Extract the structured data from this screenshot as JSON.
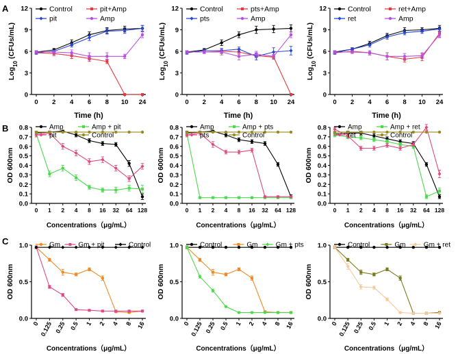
{
  "panel_labels": [
    "A",
    "B",
    "C"
  ],
  "chart_data": [
    {
      "id": "A1",
      "row": "A",
      "type": "line",
      "ylabel": "Log10 (CFUs/mL)",
      "xlabel": "Time (h)",
      "ylabel_parts": [
        "Log",
        "10",
        " (CFUs/mL)"
      ],
      "categories": [
        "0",
        "2",
        "4",
        "6",
        "8",
        "10",
        "24"
      ],
      "ylim": [
        0,
        12
      ],
      "yticks": [
        0,
        3,
        6,
        9,
        12
      ],
      "legend": [
        "Control",
        "pit+Amp",
        "pit",
        "Amp"
      ],
      "series": [
        {
          "name": "Control",
          "color": "#000000",
          "values": [
            5.9,
            6.2,
            7.2,
            8.3,
            8.9,
            9.1,
            9.2
          ],
          "err": [
            0.2,
            0.2,
            0.4,
            0.4,
            0.4,
            0.4,
            0.4
          ]
        },
        {
          "name": "pit+Amp",
          "color": "#e8383d",
          "values": [
            5.8,
            5.7,
            5.4,
            5.0,
            4.6,
            0,
            0
          ],
          "err": [
            0.2,
            0.3,
            0.4,
            0.4,
            0.3,
            0,
            0
          ]
        },
        {
          "name": "pit",
          "color": "#2446d6",
          "values": [
            5.8,
            6.0,
            6.9,
            7.9,
            8.8,
            8.9,
            9.2
          ],
          "err": [
            0.2,
            0.2,
            0.3,
            0.4,
            0.4,
            0.4,
            0.4
          ]
        },
        {
          "name": "Amp",
          "color": "#b84fe0",
          "values": [
            5.9,
            5.9,
            5.8,
            5.3,
            5.3,
            5.3,
            8.3
          ],
          "err": [
            0.2,
            0.2,
            0.4,
            0.5,
            0.5,
            0.3,
            0.4
          ]
        }
      ]
    },
    {
      "id": "A2",
      "row": "A",
      "type": "line",
      "ylabel": "Log10 (CFUs/mL)",
      "xlabel": "Time (h)",
      "ylabel_parts": [
        "Log",
        "10",
        " (CFUs/mL)"
      ],
      "categories": [
        "0",
        "2",
        "4",
        "6",
        "8",
        "10",
        "24"
      ],
      "ylim": [
        0,
        12
      ],
      "yticks": [
        0,
        3,
        6,
        9,
        12
      ],
      "legend": [
        "Control",
        "pts+Amp",
        "pts",
        "Amp"
      ],
      "series": [
        {
          "name": "Control",
          "color": "#000000",
          "values": [
            5.9,
            6.2,
            7.2,
            8.3,
            9.0,
            9.1,
            9.2
          ],
          "err": [
            0.2,
            0.2,
            0.4,
            0.4,
            0.5,
            0.5,
            0.5
          ]
        },
        {
          "name": "pts+Amp",
          "color": "#e8383d",
          "values": [
            5.9,
            5.9,
            6.0,
            5.9,
            5.4,
            5.2,
            0
          ],
          "err": [
            0.2,
            0.2,
            0.3,
            0.3,
            0.3,
            0.3,
            0
          ]
        },
        {
          "name": "pts",
          "color": "#2446d6",
          "values": [
            5.8,
            6.1,
            6.1,
            6.3,
            5.3,
            5.9,
            6.1
          ],
          "err": [
            0.2,
            0.2,
            0.3,
            0.3,
            0.5,
            0.6,
            0.6
          ]
        },
        {
          "name": "Amp",
          "color": "#b84fe0",
          "values": [
            5.9,
            5.9,
            5.9,
            5.3,
            5.6,
            5.3,
            8.3
          ],
          "err": [
            0.2,
            0.2,
            0.4,
            0.5,
            0.4,
            0.3,
            0.4
          ]
        }
      ]
    },
    {
      "id": "A3",
      "row": "A",
      "type": "line",
      "ylabel": "Log10 (CFUs/mL)",
      "xlabel": "Time (h)",
      "ylabel_parts": [
        "Log",
        "10",
        " (CFUs/mL)"
      ],
      "categories": [
        "0",
        "2",
        "4",
        "6",
        "8",
        "10",
        "24"
      ],
      "ylim": [
        0,
        12
      ],
      "yticks": [
        0,
        3,
        6,
        9,
        12
      ],
      "legend": [
        "Control",
        "ret+Amp",
        "ret",
        "Amp"
      ],
      "series": [
        {
          "name": "Control",
          "color": "#000000",
          "values": [
            5.9,
            6.3,
            7.1,
            8.2,
            8.9,
            9.0,
            9.2
          ],
          "err": [
            0.2,
            0.2,
            0.3,
            0.3,
            0.4,
            0.3,
            0.4
          ]
        },
        {
          "name": "ret+Amp",
          "color": "#e8383d",
          "values": [
            5.8,
            6.0,
            5.8,
            5.3,
            4.9,
            5.2,
            8.5
          ],
          "err": [
            0.2,
            0.2,
            0.3,
            0.5,
            0.4,
            0.5,
            0.5
          ]
        },
        {
          "name": "ret",
          "color": "#2446d6",
          "values": [
            5.8,
            6.3,
            6.9,
            8.0,
            8.6,
            8.8,
            9.1
          ],
          "err": [
            0.2,
            0.2,
            0.3,
            0.3,
            0.3,
            0.3,
            0.3
          ]
        },
        {
          "name": "Amp",
          "color": "#b84fe0",
          "values": [
            5.9,
            5.9,
            5.8,
            5.3,
            5.3,
            5.4,
            8.3
          ],
          "err": [
            0.2,
            0.2,
            0.3,
            0.5,
            0.4,
            0.4,
            0.4
          ]
        }
      ]
    },
    {
      "id": "B1",
      "row": "B",
      "type": "line",
      "ylabel": "OD 600nm",
      "xlabel": "Concentrations（μg/mL）",
      "categories": [
        "0",
        "1",
        "2",
        "4",
        "8",
        "16",
        "32",
        "64",
        "128"
      ],
      "ylim": [
        0,
        0.8
      ],
      "yticks": [
        0.0,
        0.1,
        0.2,
        0.3,
        0.4,
        0.5,
        0.6,
        0.7,
        0.8
      ],
      "legend": [
        "Amp",
        "Amp + pit",
        "pit",
        "Control"
      ],
      "series": [
        {
          "name": "Amp",
          "color": "#000000",
          "values": [
            0.74,
            0.75,
            0.76,
            0.72,
            0.66,
            0.63,
            0.62,
            0.42,
            0.07
          ],
          "err": [
            0.02,
            0.01,
            0.01,
            0.02,
            0.02,
            0.02,
            0.02,
            0.03,
            0.03
          ]
        },
        {
          "name": "Amp + pit",
          "color": "#4cd94c",
          "values": [
            0.73,
            0.31,
            0.37,
            0.27,
            0.17,
            0.14,
            0.14,
            0.16,
            0.15
          ],
          "err": [
            0.03,
            0.03,
            0.03,
            0.03,
            0.02,
            0.02,
            0.03,
            0.03,
            0.04
          ]
        },
        {
          "name": "pit",
          "color": "#e0487e",
          "values": [
            0.72,
            0.74,
            0.6,
            0.53,
            0.44,
            0.46,
            0.37,
            0.26,
            0.39
          ],
          "err": [
            0.02,
            0.02,
            0.03,
            0.03,
            0.03,
            0.03,
            0.03,
            0.03,
            0.03
          ]
        },
        {
          "name": "Control",
          "color": "#9a8a1c",
          "values": [
            0.75,
            0.75,
            0.75,
            0.75,
            0.75,
            0.75,
            0.75,
            0.75,
            0.75
          ],
          "err": [
            0,
            0,
            0,
            0,
            0,
            0,
            0,
            0,
            0
          ]
        }
      ]
    },
    {
      "id": "B2",
      "row": "B",
      "type": "line",
      "ylabel": "OD 600nm",
      "xlabel": "Concentrations（μg/mL）",
      "categories": [
        "0",
        "1",
        "2",
        "4",
        "8",
        "16",
        "32",
        "64",
        "128"
      ],
      "ylim": [
        0,
        0.8
      ],
      "yticks": [
        0.0,
        0.1,
        0.2,
        0.3,
        0.4,
        0.5,
        0.6,
        0.7,
        0.8
      ],
      "legend": [
        "Amp",
        "Amp + pts",
        "pts",
        "Control"
      ],
      "series": [
        {
          "name": "Amp",
          "color": "#000000",
          "values": [
            0.74,
            0.75,
            0.76,
            0.72,
            0.67,
            0.65,
            0.63,
            0.41,
            0.07
          ],
          "err": [
            0.02,
            0.01,
            0.01,
            0.02,
            0.02,
            0.02,
            0.02,
            0.02,
            0.02
          ]
        },
        {
          "name": "Amp + pts",
          "color": "#4cd94c",
          "values": [
            0.73,
            0.06,
            0.06,
            0.06,
            0.06,
            0.06,
            0.06,
            0.06,
            0.06
          ],
          "err": [
            0.02,
            0.01,
            0.01,
            0.01,
            0.01,
            0.01,
            0.01,
            0.01,
            0.01
          ]
        },
        {
          "name": "pts",
          "color": "#e0487e",
          "values": [
            0.72,
            0.74,
            0.62,
            0.54,
            0.54,
            0.56,
            0.07,
            0.07,
            0.07
          ],
          "err": [
            0.02,
            0.02,
            0.03,
            0.02,
            0.02,
            0.02,
            0.01,
            0.01,
            0.01
          ]
        },
        {
          "name": "Control",
          "color": "#9a8a1c",
          "values": [
            0.75,
            0.75,
            0.75,
            0.75,
            0.75,
            0.75,
            0.75,
            0.75,
            0.75
          ],
          "err": [
            0,
            0,
            0,
            0,
            0,
            0,
            0,
            0,
            0
          ]
        }
      ]
    },
    {
      "id": "B3",
      "row": "B",
      "type": "line",
      "ylabel": "OD 600nm",
      "xlabel": "Concentrations（μg/mL）",
      "categories": [
        "0",
        "1",
        "2",
        "4",
        "8",
        "16",
        "32",
        "64",
        "128"
      ],
      "ylim": [
        0,
        0.8
      ],
      "yticks": [
        0.0,
        0.1,
        0.2,
        0.3,
        0.4,
        0.5,
        0.6,
        0.7,
        0.8
      ],
      "legend": [
        "Amp",
        "Amp + ret",
        "ret",
        "Control"
      ],
      "series": [
        {
          "name": "Amp",
          "color": "#000000",
          "values": [
            0.73,
            0.74,
            0.74,
            0.71,
            0.68,
            0.65,
            0.63,
            0.41,
            0.07
          ],
          "err": [
            0.02,
            0.02,
            0.02,
            0.02,
            0.02,
            0.02,
            0.02,
            0.02,
            0.02
          ]
        },
        {
          "name": "Amp + ret",
          "color": "#4cd94c",
          "values": [
            0.72,
            0.7,
            0.69,
            0.67,
            0.65,
            0.62,
            0.6,
            0.07,
            0.13
          ],
          "err": [
            0.02,
            0.02,
            0.02,
            0.02,
            0.02,
            0.02,
            0.02,
            0.02,
            0.03
          ]
        },
        {
          "name": "ret",
          "color": "#e0487e",
          "values": [
            0.78,
            0.71,
            0.58,
            0.58,
            0.61,
            0.58,
            0.62,
            0.8,
            0.31
          ],
          "err": [
            0.02,
            0.02,
            0.02,
            0.02,
            0.02,
            0.02,
            0.02,
            0.03,
            0.04
          ]
        },
        {
          "name": "Control",
          "color": "#9a8a1c",
          "values": [
            0.75,
            0.75,
            0.75,
            0.75,
            0.75,
            0.75,
            0.75,
            0.75,
            0.75
          ],
          "err": [
            0,
            0,
            0,
            0,
            0,
            0,
            0,
            0,
            0
          ]
        }
      ]
    },
    {
      "id": "C1",
      "row": "C",
      "type": "line",
      "ylabel": "OD 600nm",
      "xlabel": "Concentrations（μg/mL）",
      "categories": [
        "0",
        "0.125",
        "0.25",
        "0.5",
        "1",
        "2",
        "4",
        "8",
        "16"
      ],
      "ylim": [
        0,
        1.0
      ],
      "yticks": [
        0.0,
        0.5,
        1.0
      ],
      "legend": [
        "Gm",
        "Gm + pit",
        "Control"
      ],
      "series": [
        {
          "name": "Gm",
          "color": "#f08a24",
          "values": [
            0.97,
            0.8,
            0.63,
            0.6,
            0.67,
            0.55,
            0.09,
            0.08,
            0.1
          ],
          "err": [
            0.02,
            0.02,
            0.04,
            0.02,
            0.02,
            0.03,
            0.01,
            0.01,
            0.01
          ]
        },
        {
          "name": "Gm + pit",
          "color": "#e0478c",
          "values": [
            0.97,
            0.43,
            0.32,
            0.12,
            0.11,
            0.1,
            0.1,
            0.1,
            0.1
          ],
          "err": [
            0.02,
            0.02,
            0.02,
            0.01,
            0.01,
            0.01,
            0.01,
            0.01,
            0.01
          ]
        },
        {
          "name": "Control",
          "color": "#000000",
          "values": [
            0.97,
            0.97,
            0.97,
            0.97,
            0.97,
            0.97,
            0.97,
            0.97,
            0.97
          ],
          "err": [
            0,
            0,
            0,
            0,
            0,
            0,
            0,
            0,
            0
          ]
        }
      ]
    },
    {
      "id": "C2",
      "row": "C",
      "type": "line",
      "ylabel": "OD 600nm",
      "xlabel": "Concentrations（μg/mL）",
      "categories": [
        "0",
        "0.125",
        "0.25",
        "0.5",
        "1",
        "2",
        "4",
        "8",
        "16"
      ],
      "ylim": [
        0,
        1.0
      ],
      "yticks": [
        0.0,
        0.5,
        1.0
      ],
      "legend": [
        "Control",
        "Gm",
        "Gm + pts"
      ],
      "series": [
        {
          "name": "Control",
          "color": "#000000",
          "values": [
            0.97,
            0.97,
            0.97,
            0.97,
            0.97,
            0.97,
            0.97,
            0.97,
            0.97
          ],
          "err": [
            0,
            0,
            0,
            0,
            0,
            0,
            0,
            0,
            0
          ]
        },
        {
          "name": "Gm",
          "color": "#f08a24",
          "values": [
            0.97,
            0.8,
            0.63,
            0.6,
            0.67,
            0.55,
            0.09,
            0.08,
            0.08
          ],
          "err": [
            0.02,
            0.02,
            0.04,
            0.02,
            0.02,
            0.03,
            0.01,
            0.01,
            0.01
          ]
        },
        {
          "name": "Gm + pts",
          "color": "#4cd94c",
          "values": [
            0.97,
            0.57,
            0.38,
            0.16,
            0.08,
            0.08,
            0.08,
            0.08,
            0.08
          ],
          "err": [
            0.02,
            0.02,
            0.02,
            0.01,
            0.01,
            0.01,
            0.01,
            0.01,
            0.01
          ]
        }
      ]
    },
    {
      "id": "C3",
      "row": "C",
      "type": "line",
      "ylabel": "OD 600nm",
      "xlabel": "Concentrations（μg/mL）",
      "categories": [
        "0",
        "0.125",
        "0.25",
        "0.5",
        "1",
        "2",
        "4",
        "8",
        "16"
      ],
      "ylim": [
        0,
        1.0
      ],
      "yticks": [
        0.0,
        0.5,
        1.0
      ],
      "legend": [
        "Control",
        "Gm",
        "Gm + ret"
      ],
      "series": [
        {
          "name": "Control",
          "color": "#000000",
          "values": [
            0.97,
            0.97,
            0.97,
            0.97,
            0.97,
            0.97,
            0.97,
            0.97,
            0.97
          ],
          "err": [
            0,
            0,
            0,
            0,
            0,
            0,
            0,
            0,
            0
          ]
        },
        {
          "name": "Gm",
          "color": "#7a7a1c",
          "values": [
            0.97,
            0.8,
            0.63,
            0.6,
            0.67,
            0.55,
            0.07,
            0.07,
            0.08
          ],
          "err": [
            0.02,
            0.02,
            0.03,
            0.02,
            0.02,
            0.03,
            0.01,
            0.01,
            0.01
          ]
        },
        {
          "name": "Gm + ret",
          "color": "#f6c89a",
          "values": [
            0.97,
            0.71,
            0.43,
            0.42,
            0.26,
            0.08,
            0.07,
            0.07,
            0.07
          ],
          "err": [
            0.02,
            0.04,
            0.03,
            0.02,
            0.02,
            0.01,
            0.01,
            0.01,
            0.01
          ]
        }
      ]
    }
  ]
}
